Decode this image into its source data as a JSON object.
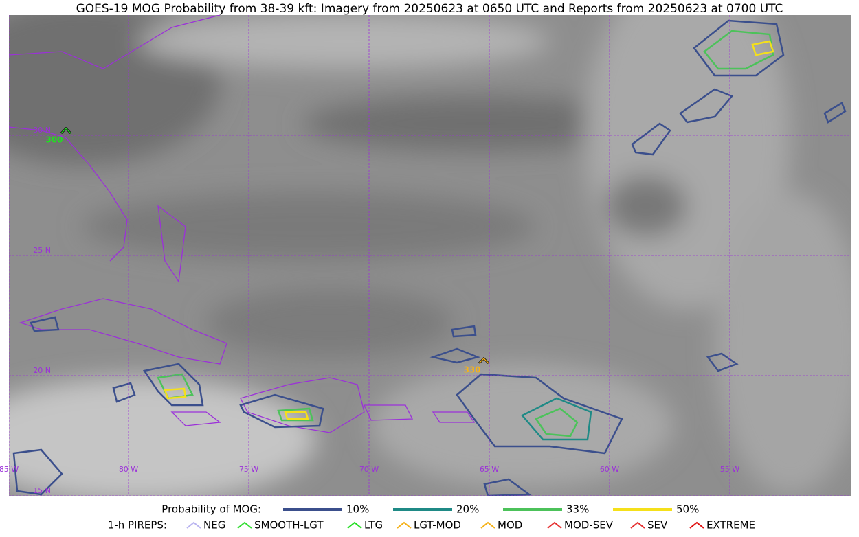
{
  "title": "GOES-19 MOG Probability from 38-39 kft: Imagery from 20250623 at 0650 UTC and Reports from 20250623 at 0700 UTC",
  "lat_labels": [
    "30 N",
    "25 N",
    "20 N",
    "15 N"
  ],
  "lon_labels": [
    "85 W",
    "80 W",
    "75 W",
    "70 W",
    "65 W",
    "60 W",
    "55 W"
  ],
  "reports": [
    {
      "label": "300",
      "type": "LTG"
    },
    {
      "label": "330",
      "type": "LGT-MOD"
    }
  ],
  "legend": {
    "probability_title": "Probability of MOG:",
    "probability": [
      {
        "label": "10%",
        "color": "#3b4f8c"
      },
      {
        "label": "20%",
        "color": "#1f8a86"
      },
      {
        "label": "33%",
        "color": "#4cc25a"
      },
      {
        "label": "50%",
        "color": "#f5e01a"
      }
    ],
    "pireps_title": "1-h PIREPS:",
    "pireps": [
      {
        "label": "NEG",
        "color": "#b9b4f0"
      },
      {
        "label": "SMOOTH-LGT",
        "color": "#33dd33"
      },
      {
        "label": "LTG",
        "color": "#22dd22"
      },
      {
        "label": "LGT-MOD",
        "color": "#f5b21a"
      },
      {
        "label": "MOD",
        "color": "#f5b21a"
      },
      {
        "label": "MOD-SEV",
        "color": "#e53030"
      },
      {
        "label": "SEV",
        "color": "#e53030"
      },
      {
        "label": "EXTREME",
        "color": "#e01010"
      }
    ]
  }
}
